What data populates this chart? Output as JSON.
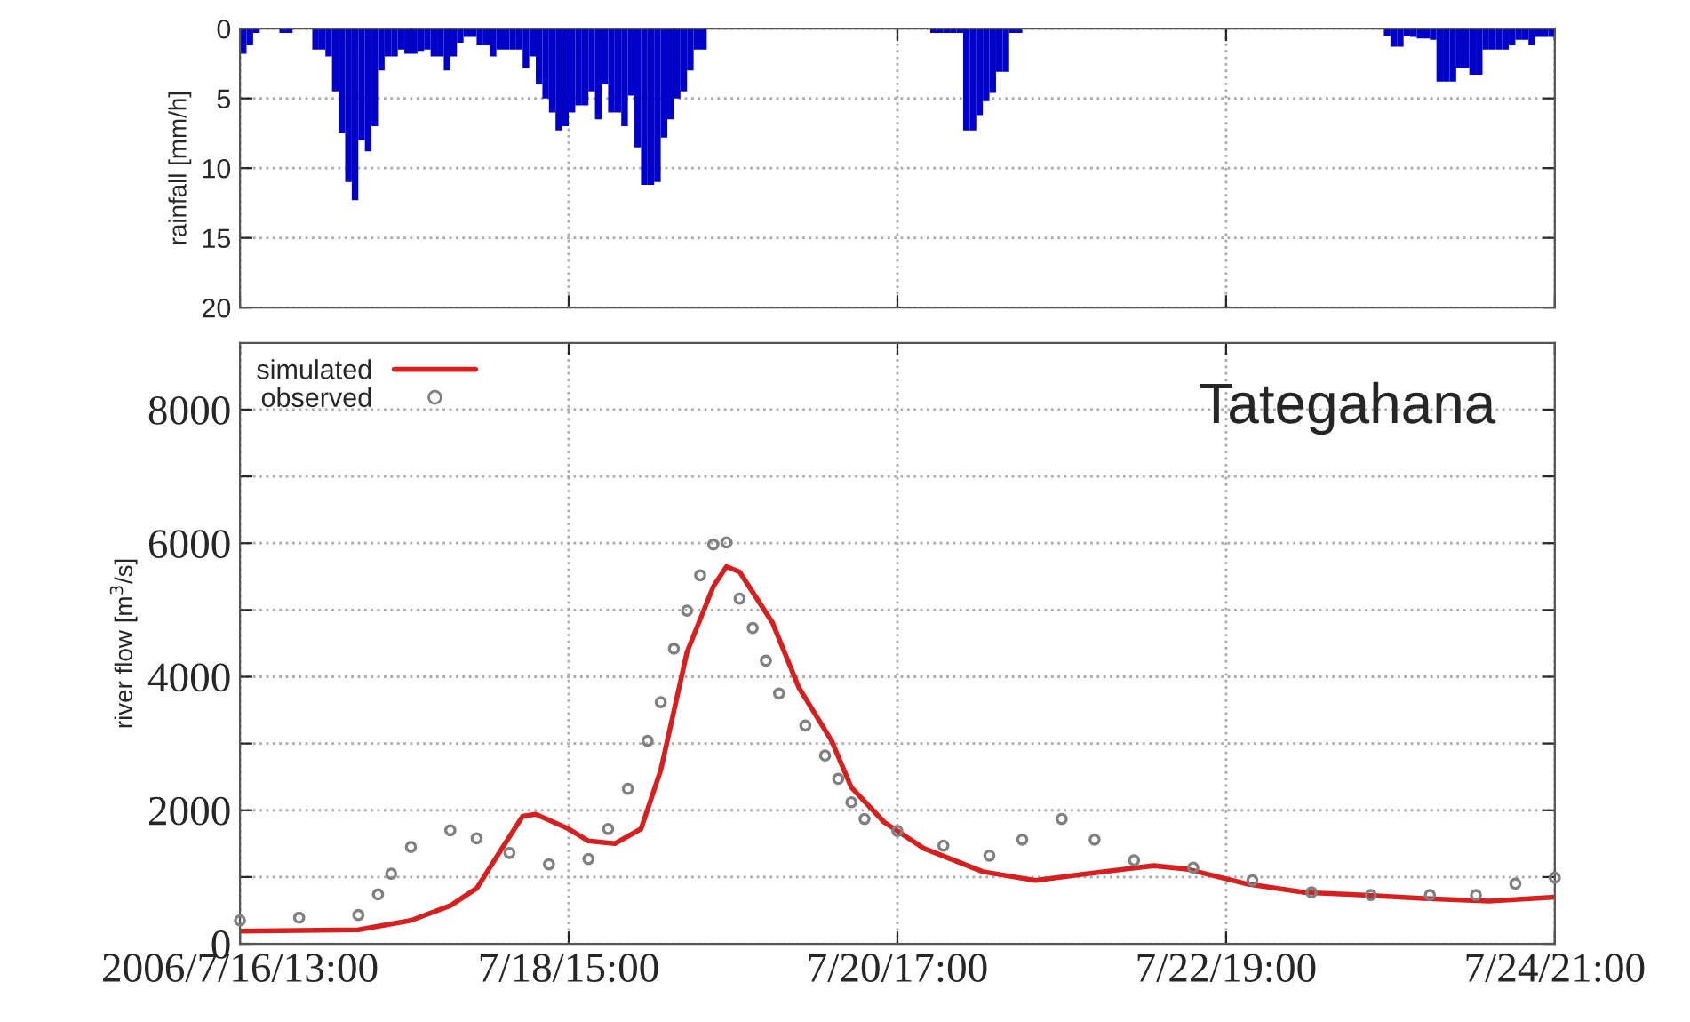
{
  "chart_data": [
    {
      "type": "bar",
      "ylabel": "rainfall [mm/h]",
      "color": "#0000c8",
      "x": [
        "2006-07-16T13:00",
        "2006-07-16T14:00",
        "2006-07-16T15:00",
        "2006-07-16T19:00",
        "2006-07-16T20:00",
        "2006-07-17T00:00",
        "2006-07-17T01:00",
        "2006-07-17T02:00",
        "2006-07-17T03:00",
        "2006-07-17T04:00",
        "2006-07-17T05:00",
        "2006-07-17T06:00",
        "2006-07-17T07:00",
        "2006-07-17T08:00",
        "2006-07-17T09:00",
        "2006-07-17T10:00",
        "2006-07-17T11:00",
        "2006-07-17T12:00",
        "2006-07-17T13:00",
        "2006-07-17T14:00",
        "2006-07-17T15:00",
        "2006-07-17T16:00",
        "2006-07-17T17:00",
        "2006-07-17T18:00",
        "2006-07-17T19:00",
        "2006-07-17T20:00",
        "2006-07-17T21:00",
        "2006-07-17T22:00",
        "2006-07-17T23:00",
        "2006-07-18T00:00",
        "2006-07-18T01:00",
        "2006-07-18T02:00",
        "2006-07-18T03:00",
        "2006-07-18T04:00",
        "2006-07-18T05:00",
        "2006-07-18T06:00",
        "2006-07-18T07:00",
        "2006-07-18T08:00",
        "2006-07-18T09:00",
        "2006-07-18T10:00",
        "2006-07-18T11:00",
        "2006-07-18T12:00",
        "2006-07-18T13:00",
        "2006-07-18T14:00",
        "2006-07-18T15:00",
        "2006-07-18T16:00",
        "2006-07-18T17:00",
        "2006-07-18T18:00",
        "2006-07-18T19:00",
        "2006-07-18T20:00",
        "2006-07-18T21:00",
        "2006-07-18T22:00",
        "2006-07-18T23:00",
        "2006-07-19T00:00",
        "2006-07-19T01:00",
        "2006-07-19T02:00",
        "2006-07-19T03:00",
        "2006-07-19T04:00",
        "2006-07-19T05:00",
        "2006-07-19T06:00",
        "2006-07-19T07:00",
        "2006-07-19T08:00",
        "2006-07-19T09:00",
        "2006-07-19T10:00",
        "2006-07-19T11:00",
        "2006-07-20T22:00",
        "2006-07-20T23:00",
        "2006-07-21T00:00",
        "2006-07-21T01:00",
        "2006-07-21T02:00",
        "2006-07-21T03:00",
        "2006-07-21T04:00",
        "2006-07-21T05:00",
        "2006-07-21T06:00",
        "2006-07-21T07:00",
        "2006-07-21T08:00",
        "2006-07-21T09:00",
        "2006-07-21T10:00",
        "2006-07-21T11:00",
        "2006-07-23T19:00",
        "2006-07-23T20:00",
        "2006-07-23T21:00",
        "2006-07-23T22:00",
        "2006-07-23T23:00",
        "2006-07-24T00:00",
        "2006-07-24T01:00",
        "2006-07-24T02:00",
        "2006-07-24T03:00",
        "2006-07-24T04:00",
        "2006-07-24T05:00",
        "2006-07-24T06:00",
        "2006-07-24T07:00",
        "2006-07-24T08:00",
        "2006-07-24T09:00",
        "2006-07-24T10:00",
        "2006-07-24T11:00",
        "2006-07-24T12:00",
        "2006-07-24T13:00",
        "2006-07-24T14:00",
        "2006-07-24T15:00",
        "2006-07-24T16:00",
        "2006-07-24T17:00",
        "2006-07-24T18:00",
        "2006-07-24T19:00",
        "2006-07-24T20:00"
      ],
      "values": [
        1.8,
        1.2,
        0.3,
        0.3,
        0.3,
        1.5,
        1.5,
        2,
        4.5,
        7.5,
        11,
        12.3,
        8,
        8.8,
        7,
        3,
        2,
        2,
        1.5,
        1.8,
        1.8,
        1.6,
        1.5,
        2,
        2,
        3,
        2,
        1,
        0.6,
        0.6,
        1.2,
        1.2,
        2,
        1.5,
        1.5,
        1.5,
        1.5,
        2.8,
        2,
        4,
        5,
        6,
        7.3,
        7,
        6,
        5.5,
        5.5,
        4.5,
        6.5,
        4,
        6,
        6,
        7,
        4.8,
        8.5,
        11.2,
        11.2,
        11,
        7.8,
        6.5,
        5,
        4.5,
        3,
        1.5,
        1.5,
        0.3,
        0.3,
        0.3,
        0.3,
        0.3,
        7.3,
        7.3,
        6.2,
        5.2,
        4.6,
        3.1,
        3.1,
        0.3,
        0.3,
        0.5,
        1.3,
        1.3,
        0.5,
        0.6,
        0.7,
        0.7,
        0.8,
        3.8,
        3.8,
        3.8,
        2.8,
        2.8,
        3.3,
        3.3,
        1.5,
        1.5,
        1.5,
        1.5,
        1.2,
        0.8,
        0.8,
        1.2,
        0.6,
        0.6,
        0.6
      ],
      "xlim": [
        "2006-07-16T13:00",
        "2006-07-24T21:00"
      ],
      "xticks": [
        {
          "value": "2006-07-16T13:00",
          "label": null
        },
        {
          "value": "2006-07-18T15:00",
          "label": null
        },
        {
          "value": "2006-07-20T17:00",
          "label": null
        },
        {
          "value": "2006-07-22T19:00",
          "label": null
        },
        {
          "value": "2006-07-24T21:00",
          "label": null
        }
      ],
      "ylim": [
        20,
        0
      ],
      "yticks": [
        0,
        5,
        10,
        15,
        20
      ],
      "tick_labels": "y",
      "grid": true
    },
    {
      "type": "line",
      "ylabel": "river flow [m$^{3}$/s]",
      "annotations": [
        "Tategahana"
      ],
      "legend": "top left",
      "grid": true,
      "xlim": [
        "2006-07-16T13:00",
        "2006-07-24T21:00"
      ],
      "xticks": [
        {
          "value": "2006-07-16T13:00",
          "label": "2006/7/16/13:00"
        },
        {
          "value": "2006-07-18T15:00",
          "label": "7/18/15:00"
        },
        {
          "value": "2006-07-20T17:00",
          "label": "7/20/17:00"
        },
        {
          "value": "2006-07-22T19:00",
          "label": "7/22/19:00"
        },
        {
          "value": "2006-07-24T21:00",
          "label": "7/24/21:00"
        }
      ],
      "ylim": [
        0,
        9000
      ],
      "yticks": [
        0,
        {
          "value": 1000,
          "label": null
        },
        2000,
        {
          "value": 3000,
          "label": null
        },
        4000,
        {
          "value": 5000,
          "label": null
        },
        6000,
        {
          "value": 7000,
          "label": null
        },
        8000
      ],
      "series": [
        {
          "name": "simulated",
          "type": "line",
          "color": "#d62020",
          "line_style": "solid",
          "marker": "none",
          "x": [
            "2006-07-16T13:00",
            "2006-07-17T07:00",
            "2006-07-17T15:00",
            "2006-07-17T21:00",
            "2006-07-18T01:00",
            "2006-07-18T05:00",
            "2006-07-18T08:00",
            "2006-07-18T10:00",
            "2006-07-18T15:00",
            "2006-07-18T18:00",
            "2006-07-18T22:00",
            "2006-07-19T02:00",
            "2006-07-19T05:00",
            "2006-07-19T09:00",
            "2006-07-19T13:00",
            "2006-07-19T15:00",
            "2006-07-19T17:00",
            "2006-07-19T22:00",
            "2006-07-20T02:00",
            "2006-07-20T07:00",
            "2006-07-20T10:00",
            "2006-07-20T15:00",
            "2006-07-20T21:00",
            "2006-07-21T06:00",
            "2006-07-21T14:00",
            "2006-07-21T21:00",
            "2006-07-22T08:00",
            "2006-07-22T13:00",
            "2006-07-22T22:00",
            "2006-07-23T07:00",
            "2006-07-23T16:00",
            "2006-07-24T01:00",
            "2006-07-24T11:00",
            "2006-07-24T21:00"
          ],
          "values": [
            190,
            210,
            350,
            570,
            830,
            1450,
            1910,
            1940,
            1720,
            1540,
            1500,
            1720,
            2600,
            4370,
            5350,
            5650,
            5570,
            4810,
            3840,
            3040,
            2340,
            1820,
            1430,
            1080,
            950,
            1040,
            1170,
            1120,
            900,
            770,
            730,
            680,
            640,
            700
          ]
        },
        {
          "name": "observed",
          "type": "scatter",
          "color": "#808080",
          "marker": "circle",
          "x": [
            "2006-07-16T13:00",
            "2006-07-16T22:00",
            "2006-07-17T07:00",
            "2006-07-17T10:00",
            "2006-07-17T12:00",
            "2006-07-17T15:00",
            "2006-07-17T21:00",
            "2006-07-18T01:00",
            "2006-07-18T06:00",
            "2006-07-18T12:00",
            "2006-07-18T18:00",
            "2006-07-18T21:00",
            "2006-07-19T00:00",
            "2006-07-19T03:00",
            "2006-07-19T05:00",
            "2006-07-19T07:00",
            "2006-07-19T09:00",
            "2006-07-19T11:00",
            "2006-07-19T13:00",
            "2006-07-19T15:00",
            "2006-07-19T17:00",
            "2006-07-19T19:00",
            "2006-07-19T21:00",
            "2006-07-19T23:00",
            "2006-07-20T03:00",
            "2006-07-20T06:00",
            "2006-07-20T08:00",
            "2006-07-20T10:00",
            "2006-07-20T12:00",
            "2006-07-20T17:00",
            "2006-07-21T00:00",
            "2006-07-21T07:00",
            "2006-07-21T12:00",
            "2006-07-21T18:00",
            "2006-07-21T23:00",
            "2006-07-22T05:00",
            "2006-07-22T14:00",
            "2006-07-22T23:00",
            "2006-07-23T08:00",
            "2006-07-23T17:00",
            "2006-07-24T02:00",
            "2006-07-24T09:00",
            "2006-07-24T15:00",
            "2006-07-24T21:00"
          ],
          "values": [
            350,
            390,
            430,
            740,
            1050,
            1450,
            1700,
            1580,
            1360,
            1190,
            1270,
            1720,
            2320,
            3040,
            3620,
            4420,
            4990,
            5520,
            5980,
            6010,
            5170,
            4730,
            4240,
            3750,
            3270,
            2820,
            2470,
            2120,
            1870,
            1690,
            1470,
            1320,
            1560,
            1870,
            1560,
            1250,
            1140,
            950,
            770,
            730,
            730,
            730,
            900,
            990
          ]
        }
      ]
    }
  ]
}
